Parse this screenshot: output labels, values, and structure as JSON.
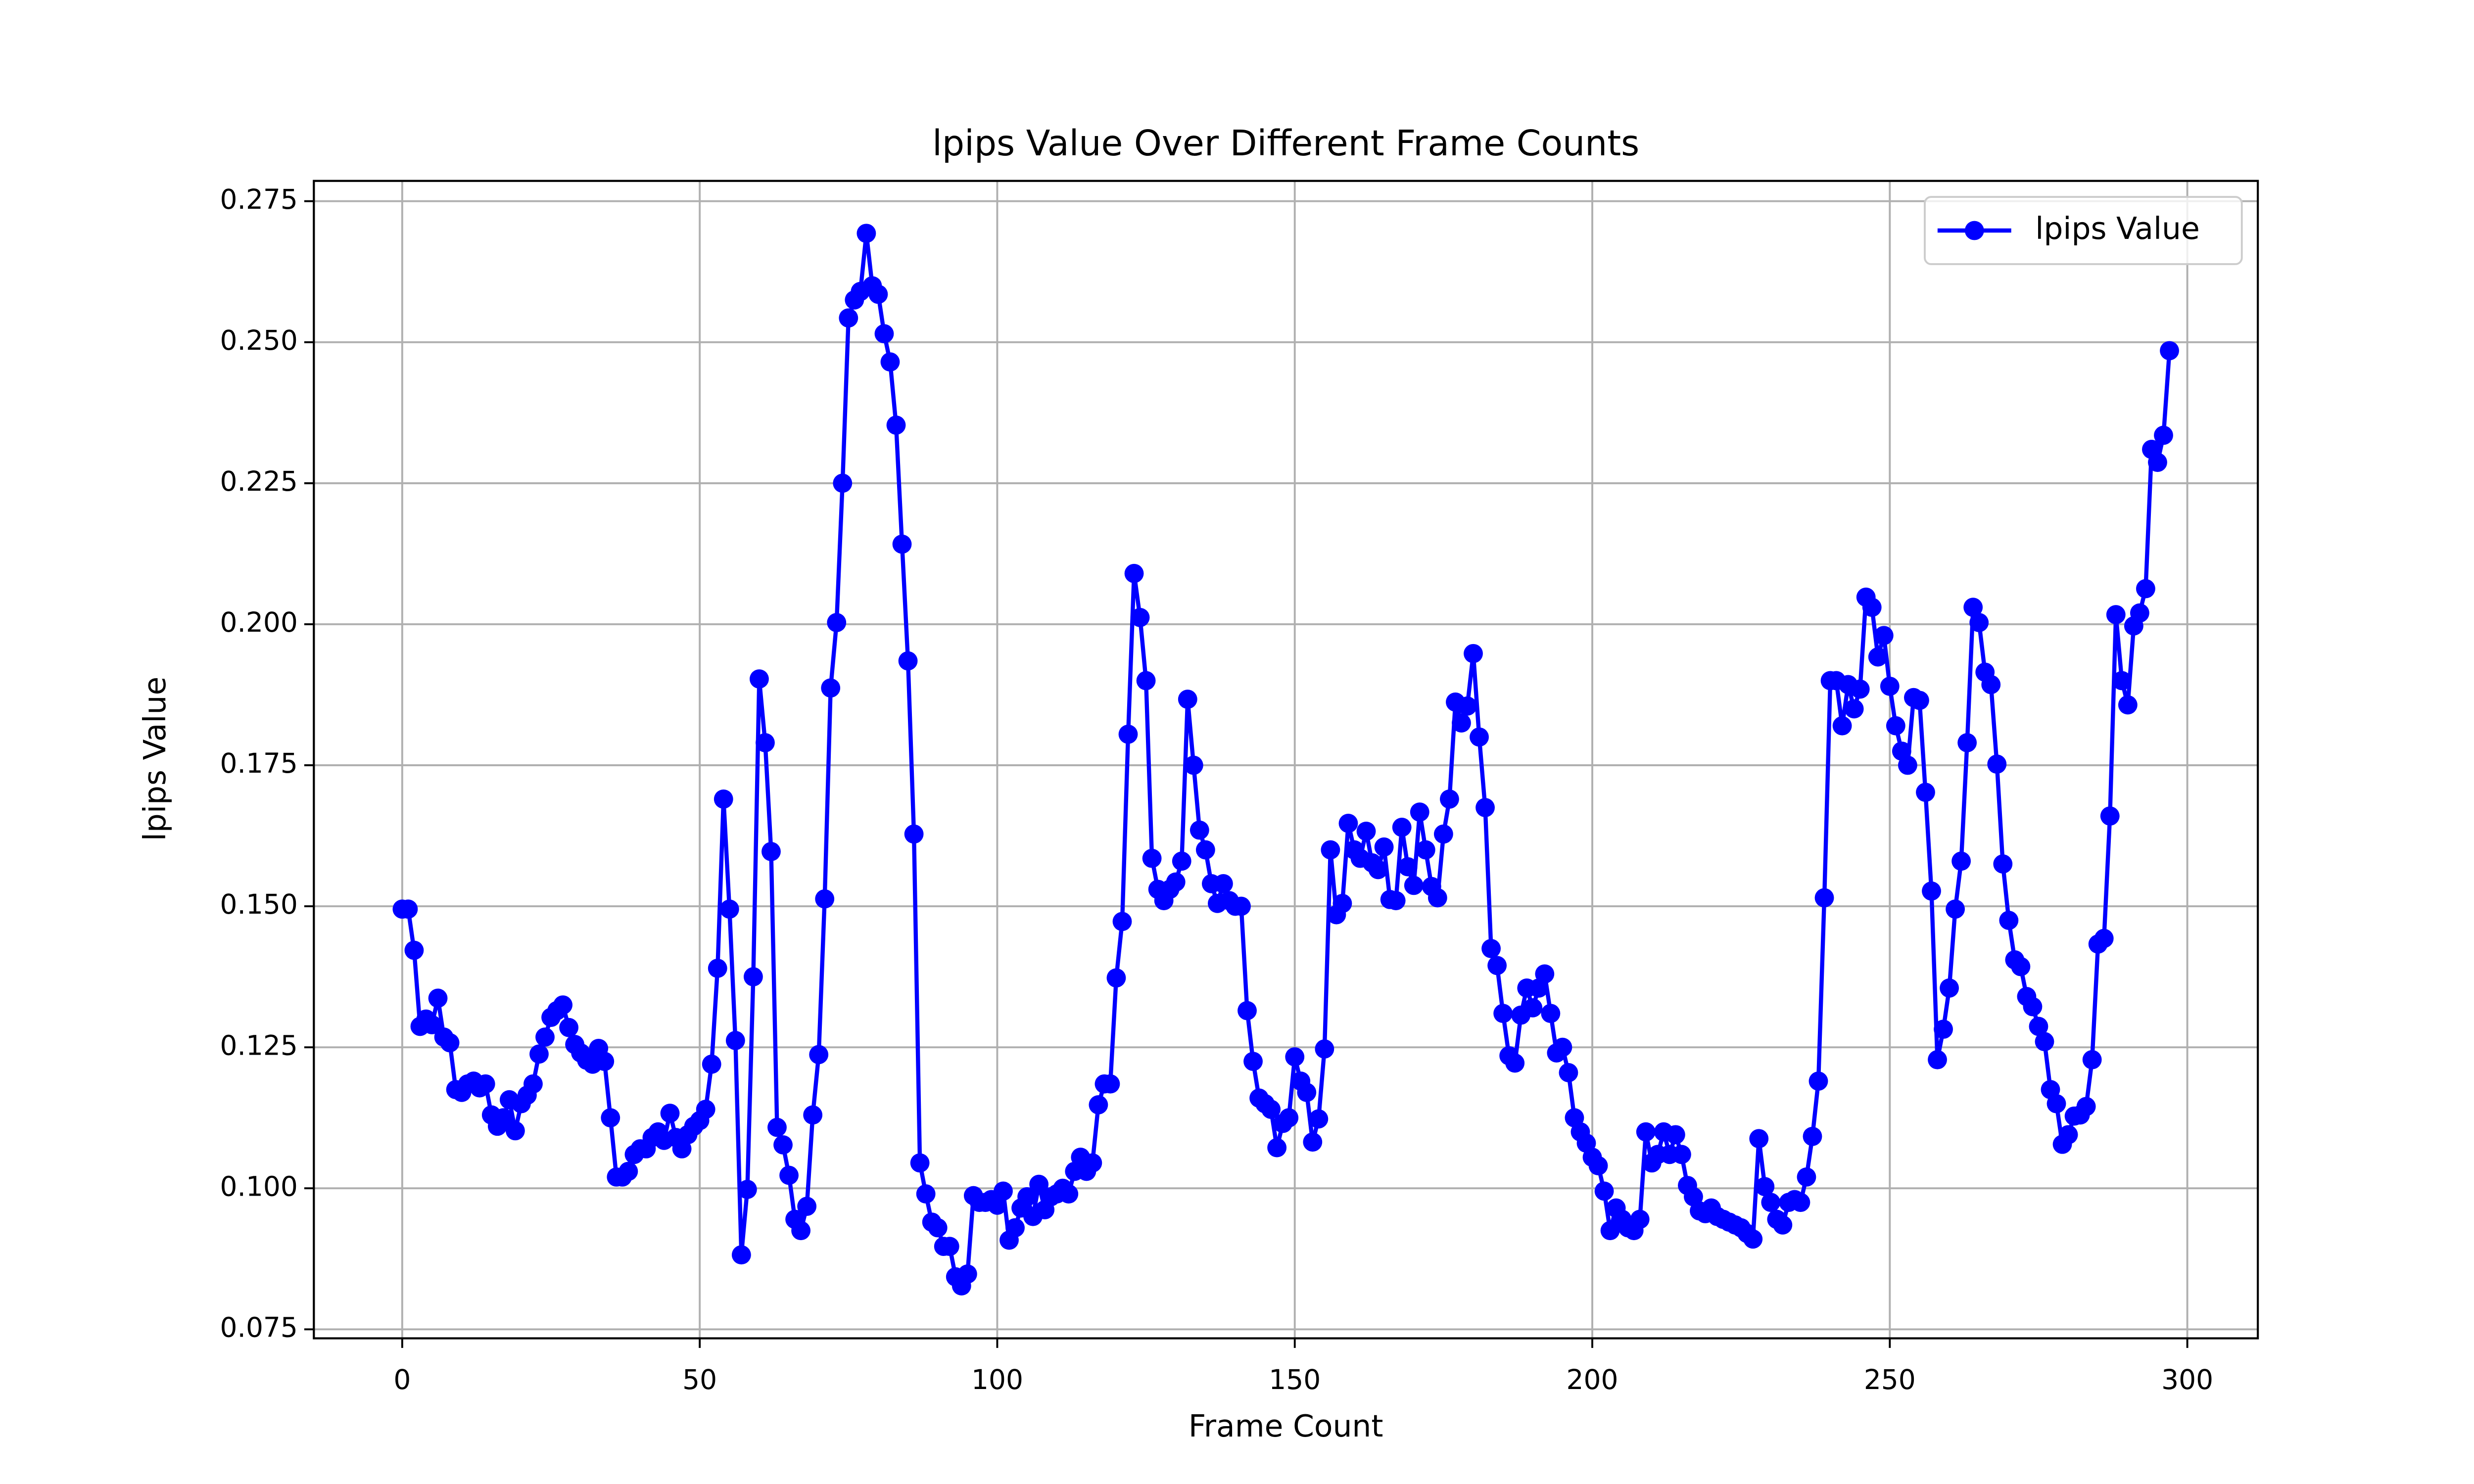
{
  "chart_data": {
    "type": "line",
    "title": "lpips Value Over Different Frame Counts",
    "x_label": "Frame Count",
    "y_label": "lpips Value",
    "x": [
      0,
      1,
      2,
      3,
      4,
      5,
      6,
      7,
      8,
      9,
      10,
      11,
      12,
      13,
      14,
      15,
      16,
      17,
      18,
      19,
      20,
      21,
      22,
      23,
      24,
      25,
      26,
      27,
      28,
      29,
      30,
      31,
      32,
      33,
      34,
      35,
      36,
      37,
      38,
      39,
      40,
      41,
      42,
      43,
      44,
      45,
      46,
      47,
      48,
      49,
      50,
      51,
      52,
      53,
      54,
      55,
      56,
      57,
      58,
      59,
      60,
      61,
      62,
      63,
      64,
      65,
      66,
      67,
      68,
      69,
      70,
      71,
      72,
      73,
      74,
      75,
      76,
      77,
      78,
      79,
      80,
      81,
      82,
      83,
      84,
      85,
      86,
      87,
      88,
      89,
      90,
      91,
      92,
      93,
      94,
      95,
      96,
      97,
      98,
      99,
      100,
      101,
      102,
      103,
      104,
      105,
      106,
      107,
      108,
      109,
      110,
      111,
      112,
      113,
      114,
      115,
      116,
      117,
      118,
      119,
      120,
      121,
      122,
      123,
      124,
      125,
      126,
      127,
      128,
      129,
      130,
      131,
      132,
      133,
      134,
      135,
      136,
      137,
      138,
      139,
      140,
      141,
      142,
      143,
      144,
      145,
      146,
      147,
      148,
      149,
      150,
      151,
      152,
      153,
      154,
      155,
      156,
      157,
      158,
      159,
      160,
      161,
      162,
      163,
      164,
      165,
      166,
      167,
      168,
      169,
      170,
      171,
      172,
      173,
      174,
      175,
      176,
      177,
      178,
      179,
      180,
      181,
      182,
      183,
      184,
      185,
      186,
      187,
      188,
      189,
      190,
      191,
      192,
      193,
      194,
      195,
      196,
      197,
      198,
      199,
      200,
      201,
      202,
      203,
      204,
      205,
      206,
      207,
      208,
      209,
      210,
      211,
      212,
      213,
      214,
      215,
      216,
      217,
      218,
      219,
      220,
      221,
      222,
      223,
      224,
      225,
      226,
      227,
      228,
      229,
      230,
      231,
      232,
      233,
      234,
      235,
      236,
      237,
      238,
      239,
      240,
      241,
      242,
      243,
      244,
      245,
      246,
      247,
      248,
      249,
      250,
      251,
      252,
      253,
      254,
      255,
      256,
      257,
      258,
      259,
      260,
      261,
      262,
      263,
      264,
      265,
      266,
      267,
      268,
      269,
      270,
      271,
      272,
      273,
      274,
      275,
      276,
      277,
      278,
      279,
      280,
      281,
      282,
      283,
      284,
      285,
      286,
      287,
      288,
      289,
      290,
      291,
      292,
      293,
      294,
      295,
      296,
      297
    ],
    "series": [
      {
        "name": "lpips Value",
        "color": "#0000ff",
        "values": [
          0.1495,
          0.1495,
          0.1422,
          0.1287,
          0.13,
          0.129,
          0.1337,
          0.1268,
          0.1258,
          0.1175,
          0.117,
          0.1185,
          0.119,
          0.1178,
          0.1185,
          0.113,
          0.111,
          0.1125,
          0.1157,
          0.1102,
          0.115,
          0.1165,
          0.1185,
          0.1238,
          0.1268,
          0.1303,
          0.1315,
          0.1325,
          0.1285,
          0.1255,
          0.124,
          0.1227,
          0.122,
          0.1248,
          0.1225,
          0.1125,
          0.102,
          0.102,
          0.103,
          0.106,
          0.107,
          0.107,
          0.109,
          0.11,
          0.1085,
          0.1133,
          0.109,
          0.107,
          0.1095,
          0.111,
          0.112,
          0.114,
          0.122,
          0.139,
          0.169,
          0.1495,
          0.1262,
          0.0882,
          0.0998,
          0.1375,
          0.1903,
          0.179,
          0.1597,
          0.1108,
          0.1077,
          0.1023,
          0.0945,
          0.0925,
          0.0968,
          0.113,
          0.1237,
          0.1513,
          0.1887,
          0.2003,
          0.225,
          0.2543,
          0.2575,
          0.259,
          0.2693,
          0.26,
          0.2585,
          0.2515,
          0.2465,
          0.2353,
          0.2142,
          0.1935,
          0.1628,
          0.1045,
          0.099,
          0.094,
          0.093,
          0.0897,
          0.0897,
          0.0843,
          0.0827,
          0.0848,
          0.0987,
          0.0975,
          0.0975,
          0.098,
          0.097,
          0.0995,
          0.0908,
          0.093,
          0.0965,
          0.0985,
          0.095,
          0.1007,
          0.0962,
          0.0985,
          0.099,
          0.1,
          0.099,
          0.103,
          0.1055,
          0.103,
          0.1045,
          0.1148,
          0.1185,
          0.1185,
          0.1373,
          0.1473,
          0.1805,
          0.209,
          0.2012,
          0.19,
          0.1585,
          0.153,
          0.151,
          0.153,
          0.1543,
          0.158,
          0.1867,
          0.175,
          0.1635,
          0.16,
          0.154,
          0.1505,
          0.154,
          0.151,
          0.15,
          0.15,
          0.1315,
          0.1225,
          0.116,
          0.115,
          0.114,
          0.1072,
          0.1115,
          0.1125,
          0.1233,
          0.119,
          0.117,
          0.1082,
          0.1123,
          0.1247,
          0.16,
          0.1485,
          0.1505,
          0.1647,
          0.16,
          0.1585,
          0.1633,
          0.1577,
          0.1565,
          0.1605,
          0.1512,
          0.151,
          0.164,
          0.157,
          0.1537,
          0.1667,
          0.16,
          0.1535,
          0.1515,
          0.1628,
          0.169,
          0.1862,
          0.1825,
          0.1855,
          0.1948,
          0.18,
          0.1675,
          0.1425,
          0.1395,
          0.131,
          0.1235,
          0.1222,
          0.1307,
          0.1355,
          0.132,
          0.1355,
          0.138,
          0.131,
          0.124,
          0.125,
          0.1205,
          0.1125,
          0.11,
          0.108,
          0.1055,
          0.104,
          0.0995,
          0.0925,
          0.0965,
          0.0945,
          0.093,
          0.0925,
          0.0945,
          0.11,
          0.1045,
          0.106,
          0.11,
          0.106,
          0.1095,
          0.106,
          0.1005,
          0.0985,
          0.096,
          0.0955,
          0.0965,
          0.095,
          0.0945,
          0.094,
          0.0935,
          0.093,
          0.092,
          0.091,
          0.1088,
          0.1003,
          0.0975,
          0.0945,
          0.0935,
          0.0975,
          0.098,
          0.0975,
          0.102,
          0.1092,
          0.119,
          0.1515,
          0.19,
          0.19,
          0.182,
          0.1893,
          0.185,
          0.1885,
          0.2048,
          0.203,
          0.1942,
          0.198,
          0.189,
          0.182,
          0.1775,
          0.175,
          0.187,
          0.1865,
          0.1702,
          0.1527,
          0.1228,
          0.1282,
          0.1355,
          0.1495,
          0.158,
          0.179,
          0.203,
          0.2003,
          0.1915,
          0.1893,
          0.1752,
          0.1575,
          0.1475,
          0.1405,
          0.1393,
          0.134,
          0.1322,
          0.1287,
          0.126,
          0.1175,
          0.115,
          0.1078,
          0.1095,
          0.1128,
          0.113,
          0.1145,
          0.1228,
          0.1433,
          0.1443,
          0.166,
          0.2017,
          0.19,
          0.1857,
          0.1997,
          0.202,
          0.2063,
          0.231,
          0.2287,
          0.2335,
          0.2485
        ]
      }
    ],
    "xlim": [
      -14.85,
      311.85
    ],
    "xticks": [
      0,
      50,
      100,
      150,
      200,
      250,
      300
    ],
    "ylim": [
      0.0734,
      0.2786
    ],
    "yticks": [
      0.075,
      {
        "value": 0.1,
        "label": "0.100"
      },
      0.125,
      {
        "value": 0.15,
        "label": "0.150"
      },
      0.175,
      {
        "value": 0.2,
        "label": "0.200"
      },
      0.225,
      {
        "value": 0.25,
        "label": "0.250"
      },
      0.275
    ],
    "grid": true,
    "legend": "upper right"
  }
}
